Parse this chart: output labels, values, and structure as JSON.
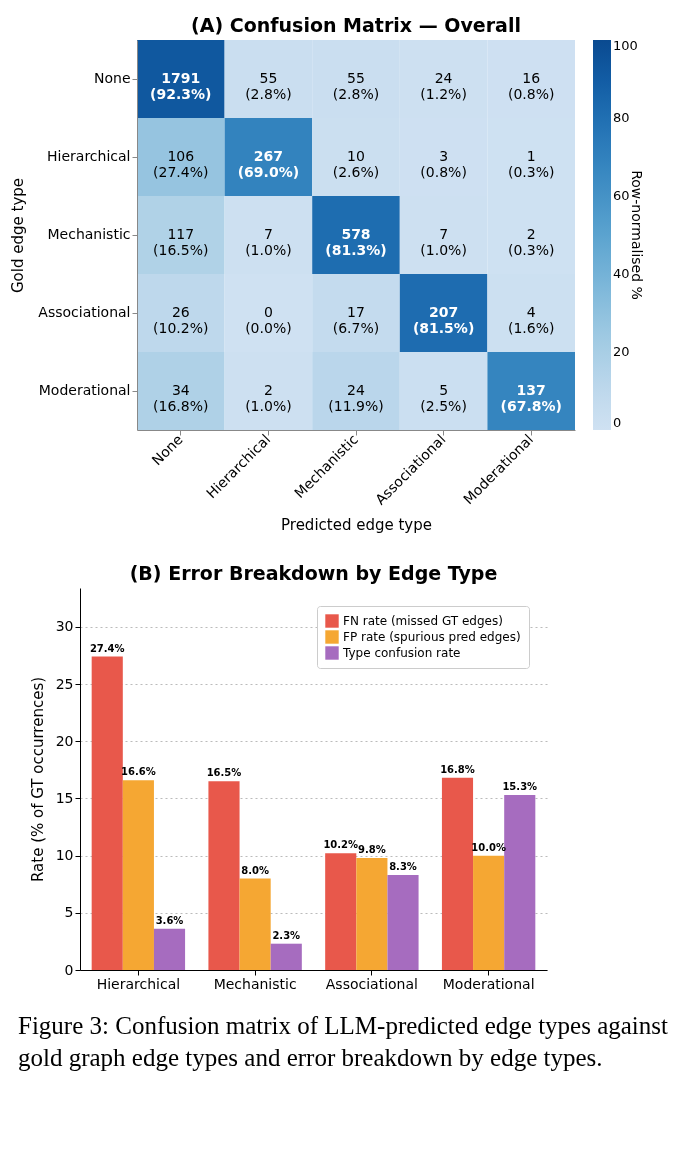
{
  "chart_data": [
    {
      "type": "heatmap",
      "title": "(A) Confusion Matrix — Overall",
      "xlabel": "Predicted edge type",
      "ylabel": "Gold edge type",
      "clabel": "Row-normalised %",
      "categories": [
        "None",
        "Hierarchical",
        "Mechanistic",
        "Associational",
        "Moderational"
      ],
      "y_categories": [
        "None",
        "Hierarchical",
        "Mechanistic",
        "Associational",
        "Moderational"
      ],
      "cells": [
        [
          92.3,
          2.8,
          2.8,
          1.2,
          0.8
        ],
        [
          27.4,
          69.0,
          2.6,
          0.8,
          0.3
        ],
        [
          16.5,
          1.0,
          81.3,
          1.0,
          0.3
        ],
        [
          10.2,
          0.0,
          6.7,
          81.5,
          1.6
        ],
        [
          16.8,
          1.0,
          11.9,
          2.5,
          67.8
        ]
      ],
      "cell_labels": [
        [
          "1791\n(92.3%)",
          "55\n(2.8%)",
          "55\n(2.8%)",
          "24\n(1.2%)",
          "16\n(0.8%)"
        ],
        [
          "106\n(27.4%)",
          "267\n(69.0%)",
          "10\n(2.6%)",
          "3\n(0.8%)",
          "1\n(0.3%)"
        ],
        [
          "117\n(16.5%)",
          "7\n(1.0%)",
          "578\n(81.3%)",
          "7\n(1.0%)",
          "2\n(0.3%)"
        ],
        [
          "26\n(10.2%)",
          "0\n(0.0%)",
          "17\n(6.7%)",
          "207\n(81.5%)",
          "4\n(1.6%)"
        ],
        [
          "34\n(16.8%)",
          "2\n(1.0%)",
          "24\n(11.9%)",
          "5\n(2.5%)",
          "137\n(67.8%)"
        ]
      ],
      "clim": [
        0,
        100
      ],
      "cticks": [
        0,
        20,
        40,
        60,
        80,
        100
      ]
    },
    {
      "type": "bar",
      "title": "(B) Error Breakdown by Edge Type",
      "ylabel": "Rate (% of GT occurrences)",
      "categories": [
        "Hierarchical",
        "Mechanistic",
        "Associational",
        "Moderational"
      ],
      "series": [
        {
          "name": "FN rate (missed GT edges)",
          "color": "#e8584b",
          "values": [
            27.4,
            16.5,
            10.2,
            16.8
          ],
          "value_labels": [
            "27.4%",
            "16.5%",
            "10.2%",
            "16.8%"
          ]
        },
        {
          "name": "FP rate (spurious pred edges)",
          "color": "#f5a733",
          "values": [
            16.6,
            8.0,
            9.8,
            10.0
          ],
          "value_labels": [
            "16.6%",
            "8.0%",
            "9.8%",
            "10.0%"
          ]
        },
        {
          "name": "Type confusion rate",
          "color": "#a66cbf",
          "values": [
            3.6,
            2.3,
            8.3,
            15.3
          ],
          "value_labels": [
            "3.6%",
            "2.3%",
            "8.3%",
            "15.3%"
          ]
        }
      ],
      "ylim": [
        0,
        33.4
      ],
      "yticks": [
        0,
        5,
        10,
        15,
        20,
        25,
        30
      ],
      "grid": "y",
      "legend": "top right",
      "annotations": [
        "Figure 3: Confusion matrix of LLM-predicted edge types against gold graph edge types and error breakdown by edge types."
      ]
    }
  ]
}
